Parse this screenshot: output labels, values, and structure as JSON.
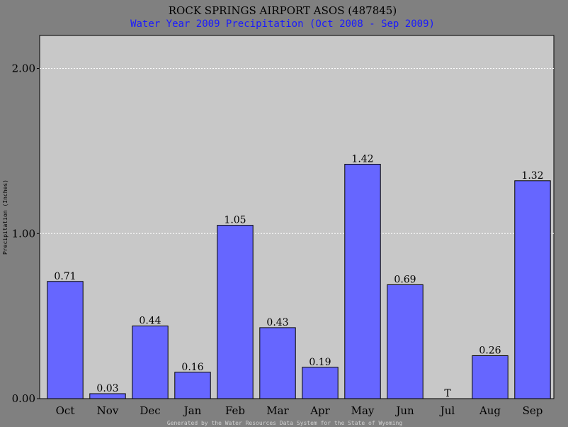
{
  "chart_data": {
    "type": "bar",
    "title": "ROCK SPRINGS AIRPORT ASOS (487845)",
    "subtitle": "Water Year 2009 Precipitation (Oct 2008 - Sep 2009)",
    "ylabel": "Precipitation (Inches)",
    "xlabel": "",
    "categories": [
      "Oct",
      "Nov",
      "Dec",
      "Jan",
      "Feb",
      "Mar",
      "Apr",
      "May",
      "Jun",
      "Jul",
      "Aug",
      "Sep"
    ],
    "values": [
      0.71,
      0.03,
      0.44,
      0.16,
      1.05,
      0.43,
      0.19,
      1.42,
      0.69,
      0,
      0.26,
      1.32
    ],
    "value_labels": [
      "0.71",
      "0.03",
      "0.44",
      "0.16",
      "1.05",
      "0.43",
      "0.19",
      "1.42",
      "0.69",
      "T",
      "0.26",
      "1.32"
    ],
    "ylim": [
      0,
      2.2
    ],
    "yticks": [
      0,
      1,
      2
    ],
    "ytick_labels": [
      "0.00",
      "1.00",
      "2.00"
    ],
    "grid": true,
    "legend": "none",
    "footer": "Generated by the Water Resources Data System for the State of Wyoming",
    "colors": {
      "bar": "#6666ff",
      "plot_background": "#c8c8c8",
      "page_background": "#808080",
      "subtitle": "#1a1aff",
      "grid": "#ffffff"
    }
  }
}
